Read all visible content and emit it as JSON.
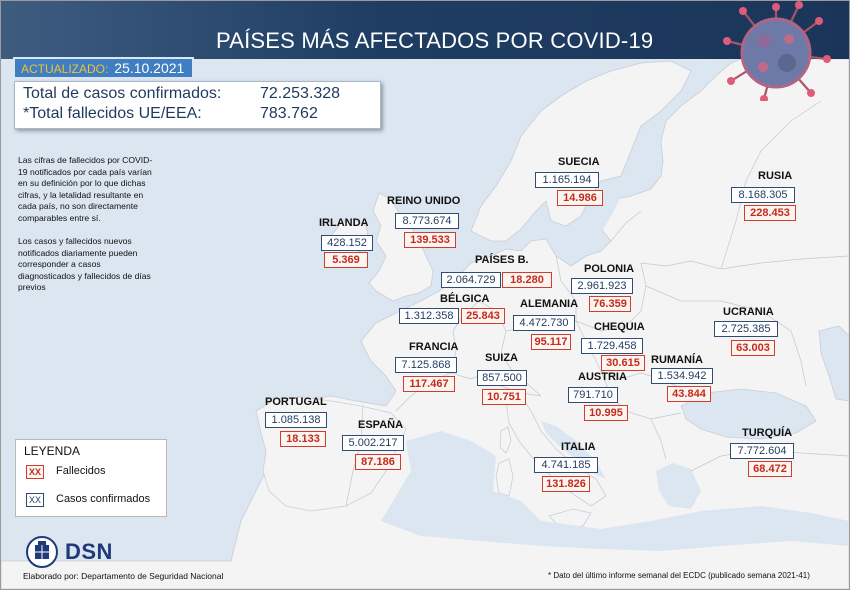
{
  "header": {
    "title": "PAÍSES MÁS AFECTADOS POR COVID-19",
    "image_name": "coronavirus-icon"
  },
  "updated": {
    "label": "ACTUALIZADO:",
    "date": "25.10.2021"
  },
  "totals": {
    "confirmed_label": "Total de casos confirmados:",
    "confirmed_value": "72.253.328",
    "deaths_label": "*Total fallecidos UE/EEA:",
    "deaths_value": "783.762"
  },
  "notes": [
    "Las cifras de fallecidos por COVID-19 notificados por cada país varían en su definición por lo que dichas cifras, y la letalidad resultante en cada país, no son directamente comparables entre sí.",
    "Los casos y fallecidos nuevos notificados diariamente pueden corresponder a casos diagnosticados y fallecidos de días previos"
  ],
  "countries": [
    {
      "id": "irlanda",
      "name": "IRLANDA",
      "cases": "428.152",
      "deaths": "5.369"
    },
    {
      "id": "reino-unido",
      "name": "REINO UNIDO",
      "cases": "8.773.674",
      "deaths": "139.533"
    },
    {
      "id": "paises-bajos",
      "name": "PAÍSES B.",
      "cases": "2.064.729",
      "deaths": "18.280"
    },
    {
      "id": "belgica",
      "name": "BÉLGICA",
      "cases": "1.312.358",
      "deaths": "25.843"
    },
    {
      "id": "francia",
      "name": "FRANCIA",
      "cases": "7.125.868",
      "deaths": "117.467"
    },
    {
      "id": "portugal",
      "name": "PORTUGAL",
      "cases": "1.085.138",
      "deaths": "18.133"
    },
    {
      "id": "espana",
      "name": "ESPAÑA",
      "cases": "5.002.217",
      "deaths": "87.186"
    },
    {
      "id": "suiza",
      "name": "SUIZA",
      "cases": "857.500",
      "deaths": "10.751"
    },
    {
      "id": "alemania",
      "name": "ALEMANIA",
      "cases": "4.472.730",
      "deaths": "95.117"
    },
    {
      "id": "suecia",
      "name": "SUECIA",
      "cases": "1.165.194",
      "deaths": "14.986"
    },
    {
      "id": "polonia",
      "name": "POLONIA",
      "cases": "2.961.923",
      "deaths": "76.359"
    },
    {
      "id": "chequia",
      "name": "CHEQUIA",
      "cases": "1.729.458",
      "deaths": "30.615"
    },
    {
      "id": "austria",
      "name": "AUSTRIA",
      "cases": "791.710",
      "deaths": "10.995"
    },
    {
      "id": "italia",
      "name": "ITALIA",
      "cases": "4.741.185",
      "deaths": "131.826"
    },
    {
      "id": "rumania",
      "name": "RUMANÍA",
      "cases": "1.534.942",
      "deaths": "43.844"
    },
    {
      "id": "ucrania",
      "name": "UCRANIA",
      "cases": "2.725.385",
      "deaths": "63.003"
    },
    {
      "id": "rusia",
      "name": "RUSIA",
      "cases": "8.168.305",
      "deaths": "228.453"
    },
    {
      "id": "turquia",
      "name": "TURQUÍA",
      "cases": "7.772.604",
      "deaths": "68.472"
    }
  ],
  "legend": {
    "title": "LEYENDA",
    "swatch_text": "XX",
    "deaths_label": "Fallecidos",
    "cases_label": "Casos confirmados"
  },
  "branding": {
    "org_short": "DSN",
    "credit": "Elaborado por: Departamento de Seguridad Nacional"
  },
  "footnote": "* Dato del último informe semanal del ECDC (publicado semana 2021-41)",
  "colors": {
    "sea": "#dbe6f1",
    "land": "#f4f4f5",
    "header": "#1f3d63",
    "cases": "#2f4d74",
    "deaths": "#d23c2c",
    "updated_bg": "#3f7ec1"
  }
}
